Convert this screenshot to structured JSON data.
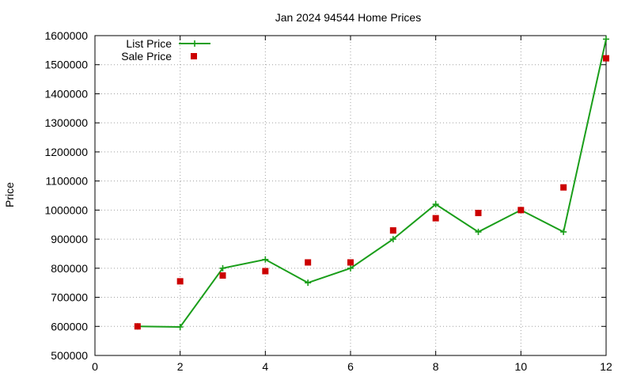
{
  "chart_data": {
    "type": "line",
    "title": "Jan 2024 94544 Home Prices",
    "xlabel": "",
    "ylabel": "Price",
    "xlim": [
      0,
      12
    ],
    "ylim": [
      500000,
      1600000
    ],
    "x_ticks": [
      0,
      2,
      4,
      6,
      8,
      10,
      12
    ],
    "y_ticks": [
      500000,
      600000,
      700000,
      800000,
      900000,
      1000000,
      1100000,
      1200000,
      1300000,
      1400000,
      1500000,
      1600000
    ],
    "grid": true,
    "legend_position": "top-left",
    "series": [
      {
        "name": "List Price",
        "style": "line-with-plus-markers",
        "color": "#1a9e1a",
        "x": [
          1,
          2,
          3,
          4,
          5,
          6,
          7,
          8,
          9,
          10,
          11,
          12
        ],
        "values": [
          600000,
          598000,
          800000,
          830000,
          750000,
          800000,
          900000,
          1020000,
          925000,
          1000000,
          925000,
          1588000
        ]
      },
      {
        "name": "Sale Price",
        "style": "square-markers",
        "color": "#cc0000",
        "x": [
          1,
          2,
          3,
          4,
          5,
          6,
          7,
          8,
          9,
          10,
          11,
          12
        ],
        "values": [
          600000,
          755000,
          775000,
          790000,
          820000,
          820000,
          930000,
          972000,
          990000,
          1000000,
          1078000,
          1522000
        ]
      }
    ]
  }
}
